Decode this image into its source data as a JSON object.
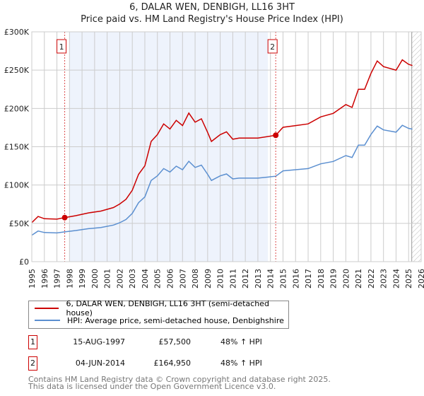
{
  "title_line1": "6, DALAR WEN, DENBIGH, LL16 3HT",
  "title_line2": "Price paid vs. HM Land Registry's House Price Index (HPI)",
  "colors": {
    "property": "#cc0000",
    "hpi": "#5b8fd0",
    "shade": "#eef3fc",
    "grid": "#cccccc"
  },
  "chart_data": {
    "type": "line",
    "xlim": [
      1995,
      2026
    ],
    "ylim": [
      0,
      300000
    ],
    "y_ticks": [
      0,
      50000,
      100000,
      150000,
      200000,
      250000,
      300000
    ],
    "y_tick_labels": [
      "£0",
      "£50K",
      "£100K",
      "£150K",
      "£200K",
      "£250K",
      "£300K"
    ],
    "x_ticks": [
      "1995",
      "1996",
      "1997",
      "1998",
      "1999",
      "2000",
      "2001",
      "2002",
      "2003",
      "2004",
      "2005",
      "2006",
      "2007",
      "2008",
      "2009",
      "2010",
      "2011",
      "2012",
      "2013",
      "2014",
      "2015",
      "2016",
      "2017",
      "2018",
      "2019",
      "2020",
      "2021",
      "2022",
      "2023",
      "2024",
      "2025",
      "2026"
    ],
    "grid": true,
    "shaded_period": [
      1998,
      2013.8
    ],
    "forecast_hatch_from": 2025.25,
    "series": [
      {
        "name": "6, DALAR WEN, DENBIGH, LL16 3HT (semi-detached house)",
        "x": [
          1995,
          1995.5,
          1996,
          1997,
          1997.62,
          1998.5,
          1999.5,
          2000.5,
          2001.5,
          2002,
          2002.5,
          2003,
          2003.5,
          2004,
          2004.5,
          2005,
          2005.5,
          2006,
          2006.5,
          2007,
          2007.5,
          2008,
          2008.5,
          2009,
          2009.3,
          2010,
          2010.5,
          2011,
          2011.5,
          2012,
          2013,
          2014.42,
          2015,
          2016,
          2017,
          2018,
          2019,
          2020,
          2020.5,
          2021,
          2021.5,
          2022,
          2022.5,
          2023,
          2024,
          2024.5,
          2025,
          2025.3
        ],
        "y": [
          51000,
          59000,
          56000,
          55500,
          57500,
          60000,
          63600,
          66000,
          70600,
          75200,
          81400,
          93200,
          114000,
          125200,
          156900,
          165800,
          179800,
          173200,
          184400,
          177600,
          193900,
          182000,
          186500,
          168700,
          156900,
          165800,
          169500,
          159800,
          161300,
          161300,
          161300,
          164950,
          175400,
          177600,
          179800,
          189000,
          193600,
          205000,
          201300,
          225000,
          225000,
          245700,
          262000,
          254600,
          250000,
          263400,
          257500,
          256000
        ]
      },
      {
        "name": "HPI: Average price, semi-detached house, Denbighshire",
        "x": [
          1995,
          1995.5,
          1996,
          1997,
          1997.62,
          1998.5,
          1999.5,
          2000.5,
          2001.5,
          2002,
          2002.5,
          2003,
          2003.5,
          2004,
          2004.5,
          2005,
          2005.5,
          2006,
          2006.5,
          2007,
          2007.5,
          2008,
          2008.5,
          2009,
          2009.3,
          2010,
          2010.5,
          2011,
          2011.5,
          2012,
          2013,
          2014.42,
          2015,
          2016,
          2017,
          2018,
          2019,
          2020,
          2020.5,
          2021,
          2021.5,
          2022,
          2022.5,
          2023,
          2024,
          2024.5,
          2025,
          2025.3
        ],
        "y": [
          34500,
          40000,
          38000,
          37500,
          38900,
          40600,
          43000,
          44600,
          47700,
          50800,
          55000,
          63000,
          77000,
          84600,
          106000,
          112000,
          121500,
          117000,
          124600,
          120000,
          131000,
          123000,
          126000,
          114000,
          106000,
          112000,
          114500,
          108000,
          109000,
          109000,
          109000,
          111500,
          118500,
          120000,
          121500,
          127700,
          130800,
          138500,
          136000,
          152000,
          152000,
          166000,
          177000,
          172000,
          169000,
          178000,
          174000,
          173000
        ]
      }
    ],
    "sales": [
      {
        "label": "1",
        "x": 1997.62,
        "y": 57500
      },
      {
        "label": "2",
        "x": 2014.42,
        "y": 164950
      }
    ]
  },
  "legend": {
    "property": "6, DALAR WEN, DENBIGH, LL16 3HT (semi-detached house)",
    "hpi": "HPI: Average price, semi-detached house, Denbighshire"
  },
  "transactions": [
    {
      "num": "1",
      "date": "15-AUG-1997",
      "price": "£57,500",
      "hpi": "48% ↑ HPI"
    },
    {
      "num": "2",
      "date": "04-JUN-2014",
      "price": "£164,950",
      "hpi": "48% ↑ HPI"
    }
  ],
  "footer": {
    "line1": "Contains HM Land Registry data © Crown copyright and database right 2025.",
    "line2": "This data is licensed under the Open Government Licence v3.0."
  }
}
